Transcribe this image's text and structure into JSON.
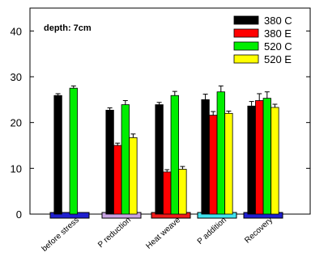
{
  "chart_data": {
    "type": "bar",
    "annotation": "depth: 7cm",
    "categories": [
      "before stress",
      "P reduction",
      "Heat weave",
      "P addition",
      "Recovery"
    ],
    "category_strip_colors": [
      "#1f1fcf",
      "#c9a4e3",
      "#ee1b1b",
      "#3fe3ee",
      "#1f1fcf"
    ],
    "ylim": [
      0,
      45
    ],
    "yticks": [
      0,
      10,
      20,
      30,
      40
    ],
    "legend_position": "top-right",
    "series": [
      {
        "name": "380 C",
        "color": "#000000",
        "values": [
          25.9,
          22.7,
          23.9,
          25.0,
          23.6
        ],
        "errors": [
          0.4,
          0.5,
          0.5,
          1.2,
          1.0
        ]
      },
      {
        "name": "380 E",
        "color": "#ff0000",
        "values": [
          null,
          15.0,
          9.2,
          21.6,
          24.8
        ],
        "errors": [
          null,
          0.5,
          0.5,
          0.8,
          1.5
        ]
      },
      {
        "name": "520 C",
        "color": "#00ee00",
        "values": [
          27.5,
          23.9,
          25.9,
          26.7,
          25.3
        ],
        "errors": [
          0.5,
          0.9,
          0.9,
          1.3,
          1.4
        ]
      },
      {
        "name": "520 E",
        "color": "#ffff00",
        "values": [
          null,
          16.7,
          9.8,
          22.0,
          23.3
        ],
        "errors": [
          null,
          0.8,
          0.6,
          0.5,
          0.7
        ]
      }
    ]
  }
}
